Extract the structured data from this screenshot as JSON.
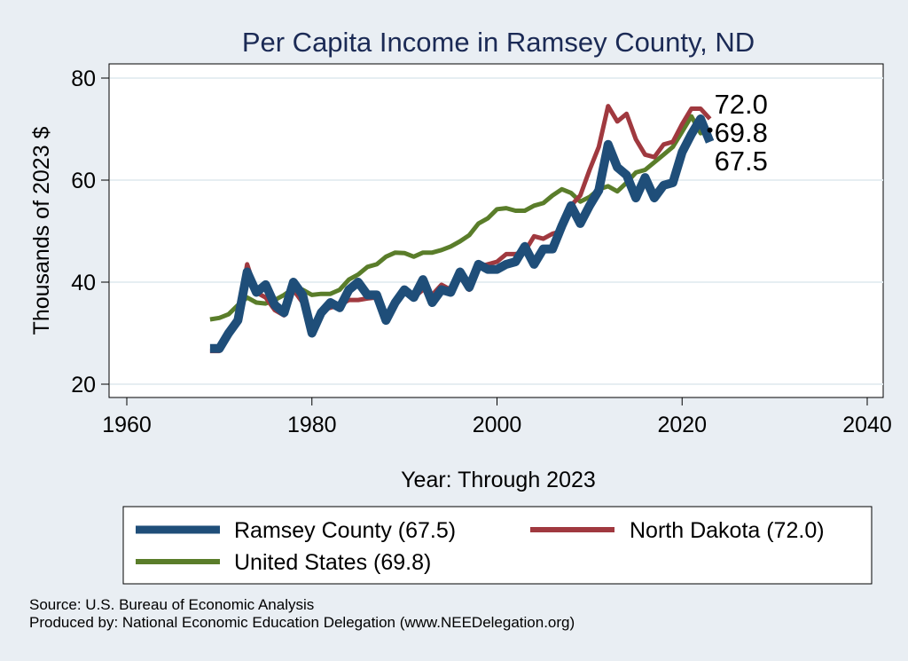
{
  "chart_data": {
    "type": "line",
    "title": "Per Capita Income in Ramsey County, ND",
    "xlabel": "Year: Through 2023",
    "ylabel": "Thousands of 2023 $",
    "xlim": [
      1960,
      2040
    ],
    "ylim": [
      20,
      80
    ],
    "xticks": [
      1960,
      1980,
      2000,
      2020,
      2040
    ],
    "yticks": [
      20,
      40,
      60,
      80
    ],
    "grid": "horizontal",
    "legend_position": "bottom",
    "end_labels": [
      "72.0",
      "69.8",
      "67.5"
    ],
    "colors": {
      "ramsey": "#1f4e79",
      "nd": "#a0393f",
      "us": "#5a7d2a"
    },
    "x": [
      1969,
      1970,
      1971,
      1972,
      1973,
      1974,
      1975,
      1976,
      1977,
      1978,
      1979,
      1980,
      1981,
      1982,
      1983,
      1984,
      1985,
      1986,
      1987,
      1988,
      1989,
      1990,
      1991,
      1992,
      1993,
      1994,
      1995,
      1996,
      1997,
      1998,
      1999,
      2000,
      2001,
      2002,
      2003,
      2004,
      2005,
      2006,
      2007,
      2008,
      2009,
      2010,
      2011,
      2012,
      2013,
      2014,
      2015,
      2016,
      2017,
      2018,
      2019,
      2020,
      2021,
      2022,
      2023
    ],
    "series": [
      {
        "name": "Ramsey County (67.5)",
        "values": [
          27.0,
          27.0,
          30.0,
          32.5,
          42.0,
          38.0,
          39.5,
          35.5,
          34.0,
          40.0,
          37.5,
          30.0,
          34.0,
          36.0,
          35.0,
          38.5,
          40.0,
          37.5,
          37.5,
          32.5,
          36.0,
          38.5,
          37.0,
          40.5,
          36.0,
          38.5,
          38.0,
          42.0,
          39.0,
          43.5,
          42.5,
          42.5,
          43.5,
          44.0,
          47.0,
          43.5,
          46.5,
          46.5,
          51.0,
          55.0,
          51.5,
          55.0,
          58.0,
          67.0,
          62.5,
          61.0,
          56.5,
          60.5,
          56.5,
          59.0,
          59.5,
          65.5,
          69.0,
          72.0,
          67.5
        ]
      },
      {
        "name": "North Dakota (72.0)",
        "values": [
          26.5,
          26.5,
          29.5,
          33.0,
          43.5,
          38.0,
          37.0,
          34.5,
          33.5,
          38.5,
          36.0,
          31.0,
          34.5,
          35.0,
          35.5,
          36.5,
          36.5,
          36.8,
          37.0,
          33.5,
          36.5,
          38.0,
          37.0,
          38.5,
          37.5,
          39.5,
          38.5,
          41.0,
          38.5,
          43.0,
          43.5,
          44.0,
          45.5,
          45.5,
          46.0,
          49.0,
          48.5,
          49.5,
          50.0,
          55.0,
          57.0,
          62.0,
          66.5,
          74.5,
          71.5,
          73.0,
          68.0,
          65.0,
          64.5,
          67.0,
          67.5,
          71.0,
          74.0,
          74.0,
          72.0
        ]
      },
      {
        "name": "United States (69.8)",
        "values": [
          32.7,
          33.0,
          33.7,
          35.5,
          37.0,
          36.0,
          35.8,
          36.5,
          37.5,
          38.8,
          38.5,
          37.5,
          37.7,
          37.7,
          38.5,
          40.5,
          41.5,
          43.0,
          43.5,
          45.0,
          45.8,
          45.7,
          45.0,
          45.8,
          45.8,
          46.3,
          47.0,
          48.0,
          49.2,
          51.5,
          52.5,
          54.3,
          54.5,
          54.0,
          54.0,
          55.0,
          55.5,
          57.0,
          58.2,
          57.5,
          55.8,
          56.7,
          58.2,
          58.8,
          57.8,
          59.5,
          61.5,
          62.0,
          63.5,
          65.0,
          66.5,
          69.5,
          72.5,
          69.2,
          69.8
        ]
      }
    ]
  },
  "legend": {
    "items": [
      {
        "label": "Ramsey County (67.5)",
        "color": "#1f4e79"
      },
      {
        "label": "North Dakota (72.0)",
        "color": "#a0393f"
      },
      {
        "label": "United States (69.8)",
        "color": "#5a7d2a"
      }
    ]
  },
  "footer": {
    "source": "Source: U.S. Bureau of Economic Analysis",
    "produced": "Produced by: National Economic Education Delegation (www.NEEDelegation.org)"
  }
}
